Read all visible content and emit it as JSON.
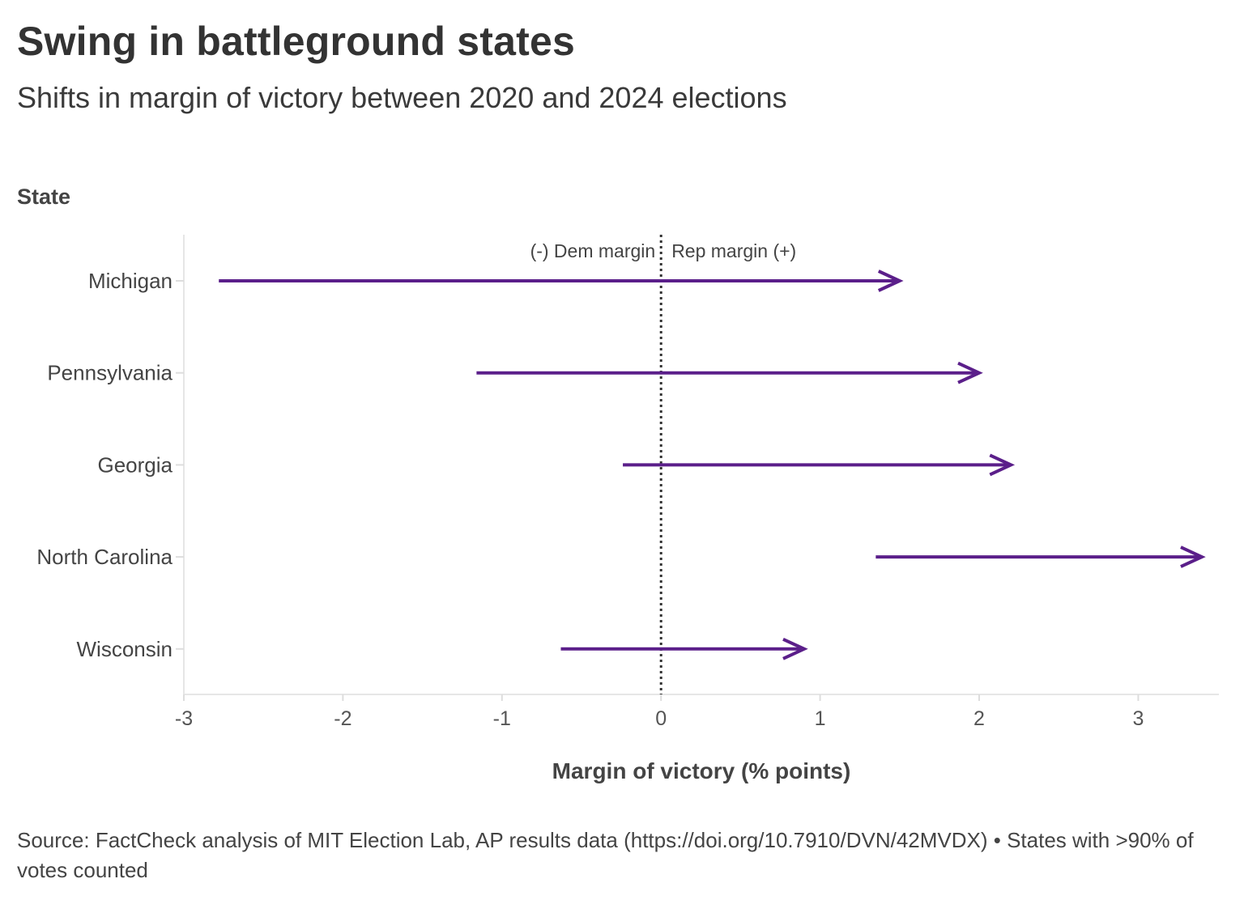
{
  "title": "Swing in battleground states",
  "subtitle": "Shifts in margin of victory between 2020 and 2024 elections",
  "source": "Source: FactCheck analysis of MIT Election Lab, AP results data (https://doi.org/10.7910/DVN/42MVDX) • States with >90% of votes counted",
  "chart_data": {
    "type": "arrow",
    "ylabel": "State",
    "xlabel": "Margin of victory (% points)",
    "annotation_left": "(-) Dem margin",
    "annotation_right": "Rep margin (+)",
    "xlim": [
      -3,
      3.5
    ],
    "xticks": [
      -3,
      -2,
      -1,
      0,
      1,
      2,
      3
    ],
    "xtick_labels": [
      "-3",
      "-2",
      "-1",
      "0",
      "1",
      "2",
      "3"
    ],
    "grid": false,
    "reference_line": 0,
    "color": "#5b1f8a",
    "series": [
      {
        "state": "Michigan",
        "from": -2.78,
        "to": 1.5
      },
      {
        "state": "Pennsylvania",
        "from": -1.16,
        "to": 2.0
      },
      {
        "state": "Georgia",
        "from": -0.24,
        "to": 2.2
      },
      {
        "state": "North Carolina",
        "from": 1.35,
        "to": 3.4
      },
      {
        "state": "Wisconsin",
        "from": -0.63,
        "to": 0.9
      }
    ]
  }
}
